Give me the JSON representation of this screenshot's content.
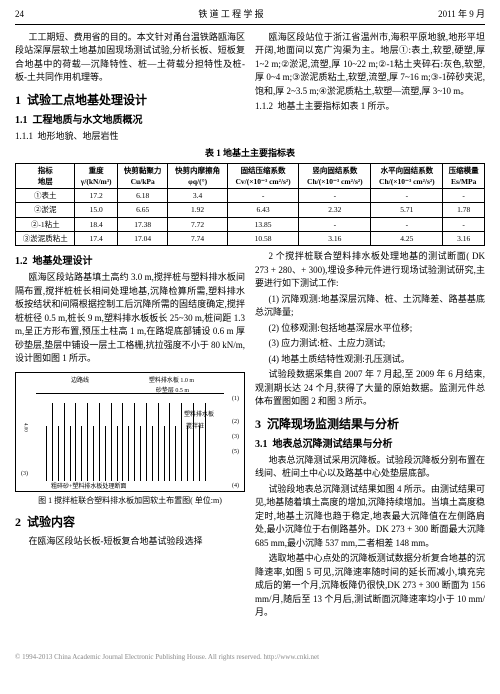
{
  "header": {
    "page": "24",
    "journal": "铁 道 工 程 学 报",
    "date": "2011 年 9 月"
  },
  "col1": {
    "p1": "工工期短、费用省的目的。本文针对甬台温铁路瓯海区段站深厚层软土地基加固现场测试试验,分析长板、短板复合地基中的荷载—沉降特性、桩—土荷载分担特性及桩-板-土共同作用机理等。",
    "s1": {
      "num": "1",
      "title": "试验工点地基处理设计"
    },
    "s11": {
      "num": "1.1",
      "title": "工程地质与水文地质概况"
    },
    "s111": {
      "num": "1.1.1",
      "title": "地形地貌、地层岩性"
    }
  },
  "col2": {
    "p1": "瓯海区段站位于浙江省温州市,海积平原地貌,地形平坦开阔,地面间以宽广沟渠为主。地层①:表土,软塑,硬塑,厚 1~2 m;②淤泥,流塑,厚 10~22 m;②-1粘土夹碎石:灰色,软塑,厚 0~4 m;③淤泥质粘土,软塑,流塑,厚 7~16 m;③-1碎砂夹泥,饱和,厚 2~3.5 m;④淤泥质粘土,软塑—流塑,厚 3~10 m。",
    "s112": {
      "num": "1.1.2",
      "title": "地基土主要指标如表 1 所示。"
    }
  },
  "table1": {
    "title": "表 1  地基土主要指标表",
    "headers": [
      "指标\n地层",
      "重度\nγ/(kN/m³)",
      "快剪黏聚力\nCu/kPa",
      "快剪内摩擦角\nφq/(°)",
      "固结压缩系数\nCv/(×10⁻³ cm²/s²)",
      "竖向固结系数\nCh/(×10⁻³ cm²/s²)",
      "水平向固结系数\nCh/(×10⁻³ cm²/s²)",
      "压缩模量\nEs/MPa"
    ],
    "rows": [
      [
        "①表土",
        "17.2",
        "6.18",
        "3.4",
        "-",
        "-",
        "-",
        "-"
      ],
      [
        "②淤泥",
        "15.0",
        "6.65",
        "1.92",
        "6.43",
        "2.32",
        "5.71",
        "1.78"
      ],
      [
        "②-1粘土",
        "18.4",
        "17.38",
        "7.72",
        "13.85",
        "-",
        "-",
        "-"
      ],
      [
        "③淤泥质粘土",
        "17.4",
        "17.04",
        "7.74",
        "10.58",
        "3.16",
        "4.25",
        "3.16"
      ]
    ]
  },
  "col1b": {
    "s12": {
      "num": "1.2",
      "title": "地基处理设计"
    },
    "p1": "瓯海区段站路基填土高约 3.0 m,搅拌桩与塑料排水板间隔布置,搅拌桩桩长相间处理地基,沉降检算所需,塑料排水板按结状和间隔根据控制工后沉降所需的固结度确定,搅拌桩桩径 0.5 m,桩长 9 m,塑料排水板板长 25~30 m,桩间距 1.3 m,呈正方形布置,预压土柱高 1 m,在路堤底部铺设 0.6 m 厚砂垫层,垫层中铺设一层土工格栅,抗拉强度不小于 80 kN/m,设计图如图 1 所示。"
  },
  "figure1": {
    "caption": "图 1  搅拌桩联合塑料排水板加固软土布置图( 单位:m)",
    "labels": [
      "边路线",
      "塑料排水板 1.0 m",
      "砂垫层 0.5 m",
      "塑料排水板",
      "搅拌桩",
      "粗碎砂+塑料排水板处理断面"
    ],
    "nums": [
      "(1)",
      "(2)",
      "(3)",
      "(5)",
      "(3)",
      "(4)"
    ],
    "dim": "4.00"
  },
  "col1c": {
    "s2": {
      "num": "2",
      "title": "试验内容"
    },
    "p1": "在瓯海区段站长板-短板复合地基试验段选择"
  },
  "col2b": {
    "p1": "2 个搅拌桩联合塑料排水板处理地基的测试断面( DK 273 + 280、+ 300),埋设多种元件进行现场试验测试研究,主要进行如下测试工作:",
    "li1": "(1) 沉降观测:地基深层沉降、桩、土沉降差、路基基底总沉降量;",
    "li2": "(2) 位移观测:包括地基深层水平位移;",
    "li3": "(3) 应力测试:桩、土应力测试;",
    "li4": "(4) 地基土质结特性观测:孔压测试。",
    "p2": "试验段数据采集自 2007 年 7 月起,至 2009 年 6 月结束,观测期长达 24 个月,获得了大量的原始数据。监测元件总体布置图如图 2 和图 3 所示。",
    "s3": {
      "num": "3",
      "title": "沉降现场监测结果与分析"
    },
    "s31": {
      "num": "3.1",
      "title": "地表总沉降测试结果与分析"
    },
    "p3": "地表总沉降测试采用沉降板。试验段沉降板分别布置在线间、桩间土中心以及路基中心处垫层底部。",
    "p4": "试验段地表总沉降测试结果如图 4 所示。由测试结果可见,地基随着填土高度的增加,沉降持续增加。当填土高度稳定时,地基土沉降也趋于稳定,地表最大沉降值在左侧路肩处,最小沉降位于右侧路基外。DK 273 + 300 断面最大沉降 685 mm,最小沉降 537 mm,二者相差 148 mm。",
    "p5": "选取地基中心点处的沉降板测试数据分析复合地基的沉降速率,如图 5 可见,沉降速率随时间的延长而减小,填充完成后的第一个月,沉降板降仍很快,DK 273 + 300 断面为 156 mm/月,随后至 13 个月后,测试断面沉降速率均小于 10 mm/月。"
  },
  "footer": "© 1994-2013 China Academic Journal Electronic Publishing House. All rights reserved.    http://www.cnki.net"
}
